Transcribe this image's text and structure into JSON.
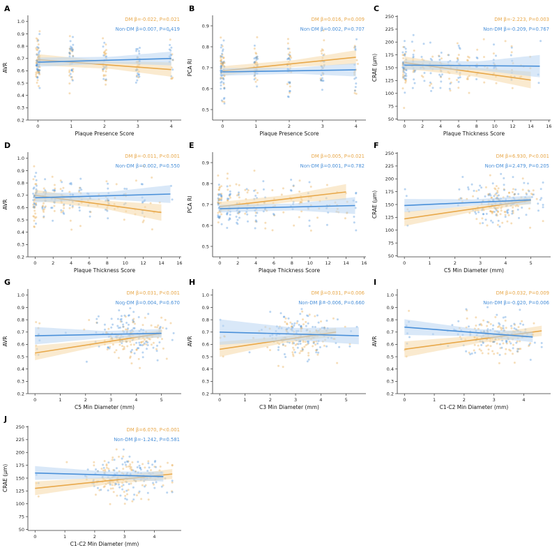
{
  "colors": {
    "dm": "#e8a84a",
    "nondm": "#4a90d9",
    "dm_band": "#f5d9a8",
    "nondm_band": "#b9d6f2",
    "axis": "#333333"
  },
  "chart_data": [
    {
      "type": "scatter",
      "panel": "A",
      "xlabel": "Plaque Presence Score",
      "ylabel": "AVR",
      "xlim": [
        -0.3,
        4.3
      ],
      "ylim": [
        0.2,
        1.05
      ],
      "xticks": [
        0,
        1,
        2,
        3,
        4
      ],
      "yticks": [
        0.2,
        0.3,
        0.4,
        0.5,
        0.6,
        0.7,
        0.8,
        0.9,
        1.0
      ],
      "series": [
        {
          "name": "DM",
          "annotation": "DM β=-0.022, P=0.021",
          "line": [
            [
              0,
              0.69
            ],
            [
              4,
              0.61
            ]
          ],
          "band": [
            0.03,
            0.05
          ],
          "points_kind": "discrete",
          "points_x": [
            0,
            1,
            2,
            3,
            4
          ],
          "y_center": 0.66,
          "y_spread": 0.13
        },
        {
          "name": "Non-DM",
          "annotation": "Non-DM β=0.007, P=0.419",
          "line": [
            [
              0,
              0.67
            ],
            [
              4,
              0.7
            ]
          ],
          "band": [
            0.025,
            0.05
          ],
          "points_kind": "discrete",
          "points_x": [
            0,
            1,
            2,
            3,
            4
          ],
          "y_center": 0.68,
          "y_spread": 0.12
        }
      ]
    },
    {
      "type": "scatter",
      "panel": "B",
      "xlabel": "Plaque Presence Score",
      "ylabel": "PCA RI",
      "xlim": [
        -0.3,
        4.3
      ],
      "ylim": [
        0.45,
        0.95
      ],
      "xticks": [
        0,
        1,
        2,
        3,
        4
      ],
      "yticks": [
        0.5,
        0.6,
        0.7,
        0.8,
        0.9
      ],
      "series": [
        {
          "name": "DM",
          "annotation": "DM β=0.016, P=0.009",
          "line": [
            [
              0,
              0.685
            ],
            [
              4,
              0.75
            ]
          ],
          "band": [
            0.015,
            0.03
          ],
          "points_kind": "discrete",
          "points_x": [
            0,
            1,
            2,
            3,
            4
          ],
          "y_center": 0.7,
          "y_spread": 0.08
        },
        {
          "name": "Non-DM",
          "annotation": "Non-DM β=0.002, P=0.707",
          "line": [
            [
              0,
              0.68
            ],
            [
              4,
              0.69
            ]
          ],
          "band": [
            0.012,
            0.03
          ],
          "points_kind": "discrete",
          "points_x": [
            0,
            1,
            2,
            3,
            4
          ],
          "y_center": 0.68,
          "y_spread": 0.08
        }
      ]
    },
    {
      "type": "scatter",
      "panel": "C",
      "xlabel": "Plaque Thickness Score",
      "ylabel": "CRAE (μm)",
      "xlim": [
        -0.8,
        16.2
      ],
      "ylim": [
        48,
        252
      ],
      "xticks": [
        0,
        2,
        4,
        6,
        8,
        10,
        12,
        14,
        16
      ],
      "yticks": [
        50,
        75,
        100,
        125,
        150,
        175,
        200,
        225,
        250
      ],
      "series": [
        {
          "name": "DM",
          "annotation": "DM β=-2.223, P=0.003",
          "line": [
            [
              0,
              160
            ],
            [
              14,
              126
            ]
          ],
          "band": [
            8,
            14
          ],
          "points_kind": "discrete",
          "points_x": [
            0,
            1,
            2,
            3,
            4,
            5,
            6,
            7,
            8,
            9,
            10,
            11,
            12,
            13,
            14
          ],
          "y_center": 150,
          "y_spread": 30
        },
        {
          "name": "Non-DM",
          "annotation": "Non-DM β=-0.209, P=0.767",
          "line": [
            [
              0,
              155
            ],
            [
              15,
              153
            ]
          ],
          "band": [
            6,
            22
          ],
          "points_kind": "discrete",
          "points_x": [
            0,
            1,
            2,
            3,
            4,
            5,
            6,
            8,
            10,
            12,
            15
          ],
          "y_center": 155,
          "y_spread": 28
        }
      ]
    },
    {
      "type": "scatter",
      "panel": "D",
      "xlabel": "Plaque Thickness Score",
      "ylabel": "AVR",
      "xlim": [
        -0.8,
        16.2
      ],
      "ylim": [
        0.2,
        1.05
      ],
      "xticks": [
        0,
        2,
        4,
        6,
        8,
        10,
        12,
        14,
        16
      ],
      "yticks": [
        0.2,
        0.3,
        0.4,
        0.5,
        0.6,
        0.7,
        0.8,
        0.9,
        1.0
      ],
      "series": [
        {
          "name": "DM",
          "annotation": "DM β=-0.011, P<0.001",
          "line": [
            [
              0,
              0.7
            ],
            [
              14,
              0.56
            ]
          ],
          "band": [
            0.03,
            0.06
          ],
          "points_kind": "discrete",
          "points_x": [
            0,
            1,
            2,
            3,
            4,
            5,
            6,
            7,
            8,
            9,
            10,
            11,
            12,
            13,
            14
          ],
          "y_center": 0.65,
          "y_spread": 0.13
        },
        {
          "name": "Non-DM",
          "annotation": "Non-DM β=0.002, P=0.550",
          "line": [
            [
              0,
              0.68
            ],
            [
              15,
              0.71
            ]
          ],
          "band": [
            0.025,
            0.07
          ],
          "points_kind": "discrete",
          "points_x": [
            0,
            1,
            2,
            3,
            4,
            5,
            6,
            8,
            10,
            12,
            15
          ],
          "y_center": 0.68,
          "y_spread": 0.12
        }
      ]
    },
    {
      "type": "scatter",
      "panel": "E",
      "xlabel": "Plaque Thickness Score",
      "ylabel": "PCA RI",
      "xlim": [
        -0.8,
        16.2
      ],
      "ylim": [
        0.45,
        0.95
      ],
      "xticks": [
        0,
        2,
        4,
        6,
        8,
        10,
        12,
        14,
        16
      ],
      "yticks": [
        0.5,
        0.6,
        0.7,
        0.8,
        0.9
      ],
      "series": [
        {
          "name": "DM",
          "annotation": "DM β=0.005, P=0.021",
          "line": [
            [
              0,
              0.69
            ],
            [
              14,
              0.76
            ]
          ],
          "band": [
            0.015,
            0.035
          ],
          "points_kind": "discrete",
          "points_x": [
            0,
            1,
            2,
            3,
            4,
            5,
            6,
            7,
            8,
            9,
            10,
            11,
            12,
            13,
            14
          ],
          "y_center": 0.71,
          "y_spread": 0.08
        },
        {
          "name": "Non-DM",
          "annotation": "Non-DM β=0.001, P=0.782",
          "line": [
            [
              0,
              0.68
            ],
            [
              15,
              0.695
            ]
          ],
          "band": [
            0.012,
            0.04
          ],
          "points_kind": "discrete",
          "points_x": [
            0,
            1,
            2,
            3,
            4,
            5,
            6,
            8,
            10,
            12,
            15
          ],
          "y_center": 0.68,
          "y_spread": 0.08
        }
      ]
    },
    {
      "type": "scatter",
      "panel": "F",
      "xlabel": "C5 Min Diameter (mm)",
      "ylabel": "CRAE (μm)",
      "xlim": [
        -0.28,
        5.78
      ],
      "ylim": [
        48,
        252
      ],
      "xticks": [
        0,
        1,
        2,
        3,
        4,
        5
      ],
      "yticks": [
        50,
        75,
        100,
        125,
        150,
        175,
        200,
        225,
        250
      ],
      "series": [
        {
          "name": "DM",
          "annotation": "DM β=6.930, P<0.001",
          "line": [
            [
              0,
              122
            ],
            [
              5,
              158
            ]
          ],
          "band": [
            12,
            5
          ],
          "points_kind": "continuous",
          "x_center": 3.9,
          "x_spread": 0.7,
          "y_center": 152,
          "y_spread": 28
        },
        {
          "name": "Non-DM",
          "annotation": "Non-DM β=2.479, P=0.205",
          "line": [
            [
              0,
              148
            ],
            [
              5,
              159
            ]
          ],
          "band": [
            10,
            6
          ],
          "points_kind": "continuous",
          "x_center": 3.8,
          "x_spread": 0.75,
          "y_center": 155,
          "y_spread": 28
        }
      ]
    },
    {
      "type": "scatter",
      "panel": "G",
      "xlabel": "C5 Min Diameter (mm)",
      "ylabel": "AVR",
      "xlim": [
        -0.28,
        5.78
      ],
      "ylim": [
        0.2,
        1.05
      ],
      "xticks": [
        0,
        1,
        2,
        3,
        4,
        5
      ],
      "yticks": [
        0.2,
        0.3,
        0.4,
        0.5,
        0.6,
        0.7,
        0.8,
        0.9,
        1.0
      ],
      "series": [
        {
          "name": "DM",
          "annotation": "DM β=0.031, P<0.001",
          "line": [
            [
              0,
              0.53
            ],
            [
              5,
              0.69
            ]
          ],
          "band": [
            0.05,
            0.02
          ],
          "points_kind": "continuous",
          "x_center": 3.9,
          "x_spread": 0.7,
          "y_center": 0.66,
          "y_spread": 0.12
        },
        {
          "name": "Non-DM",
          "annotation": "Non-DM β=0.004, P=0.670",
          "line": [
            [
              0,
              0.67
            ],
            [
              5,
              0.69
            ]
          ],
          "band": [
            0.06,
            0.025
          ],
          "points_kind": "continuous",
          "x_center": 3.8,
          "x_spread": 0.75,
          "y_center": 0.68,
          "y_spread": 0.12
        }
      ]
    },
    {
      "type": "scatter",
      "panel": "H",
      "xlabel": "C3 Min Diameter (mm)",
      "ylabel": "AVR",
      "xlim": [
        -0.28,
        5.78
      ],
      "ylim": [
        0.2,
        1.05
      ],
      "xticks": [
        0,
        1,
        2,
        3,
        4,
        5
      ],
      "yticks": [
        0.2,
        0.3,
        0.4,
        0.5,
        0.6,
        0.7,
        0.8,
        0.9,
        1.0
      ],
      "series": [
        {
          "name": "DM",
          "annotation": "DM β=0.031, P=0.006",
          "line": [
            [
              0,
              0.56
            ],
            [
              4.6,
              0.7
            ]
          ],
          "band": [
            0.05,
            0.025
          ],
          "points_kind": "continuous",
          "x_center": 3.2,
          "x_spread": 0.7,
          "y_center": 0.66,
          "y_spread": 0.12
        },
        {
          "name": "Non-DM",
          "annotation": "Non-DM β=-0.006, P=0.660",
          "line": [
            [
              0,
              0.7
            ],
            [
              5.5,
              0.67
            ]
          ],
          "band": [
            0.08,
            0.05
          ],
          "points_kind": "continuous",
          "x_center": 3.2,
          "x_spread": 0.75,
          "y_center": 0.68,
          "y_spread": 0.12
        }
      ]
    },
    {
      "type": "scatter",
      "panel": "I",
      "xlabel": "C1-C2 Min Diameter (mm)",
      "ylabel": "AVR",
      "xlim": [
        -0.24,
        4.9
      ],
      "ylim": [
        0.2,
        1.05
      ],
      "xticks": [
        0,
        1,
        2,
        3,
        4
      ],
      "yticks": [
        0.2,
        0.3,
        0.4,
        0.5,
        0.6,
        0.7,
        0.8,
        0.9,
        1.0
      ],
      "series": [
        {
          "name": "DM",
          "annotation": "DM β=0.032, P=0.009",
          "line": [
            [
              0,
              0.56
            ],
            [
              4.6,
              0.71
            ]
          ],
          "band": [
            0.05,
            0.03
          ],
          "points_kind": "continuous",
          "x_center": 3.0,
          "x_spread": 0.65,
          "y_center": 0.66,
          "y_spread": 0.12
        },
        {
          "name": "Non-DM",
          "annotation": "Non-DM β=-0.020, P=0.006",
          "line": [
            [
              0,
              0.74
            ],
            [
              4.3,
              0.66
            ]
          ],
          "band": [
            0.05,
            0.03
          ],
          "points_kind": "continuous",
          "x_center": 3.0,
          "x_spread": 0.7,
          "y_center": 0.68,
          "y_spread": 0.12
        }
      ]
    },
    {
      "type": "scatter",
      "panel": "J",
      "xlabel": "C1-C2 Min Diameter (mm)",
      "ylabel": "CRAE (μm)",
      "xlim": [
        -0.24,
        4.9
      ],
      "ylim": [
        48,
        252
      ],
      "xticks": [
        0,
        1,
        2,
        3,
        4
      ],
      "yticks": [
        50,
        75,
        100,
        125,
        150,
        175,
        200,
        225,
        250
      ],
      "series": [
        {
          "name": "DM",
          "annotation": "DM β=6.070, P<0.001",
          "line": [
            [
              0,
              130
            ],
            [
              4.6,
              158
            ]
          ],
          "band": [
            10,
            7
          ],
          "points_kind": "continuous",
          "x_center": 3.0,
          "x_spread": 0.65,
          "y_center": 150,
          "y_spread": 28
        },
        {
          "name": "Non-DM",
          "annotation": "Non-DM β=-1.242, P=0.581",
          "line": [
            [
              0,
              160
            ],
            [
              4.3,
              153
            ]
          ],
          "band": [
            10,
            7
          ],
          "points_kind": "continuous",
          "x_center": 3.0,
          "x_spread": 0.7,
          "y_center": 155,
          "y_spread": 28
        }
      ]
    }
  ]
}
